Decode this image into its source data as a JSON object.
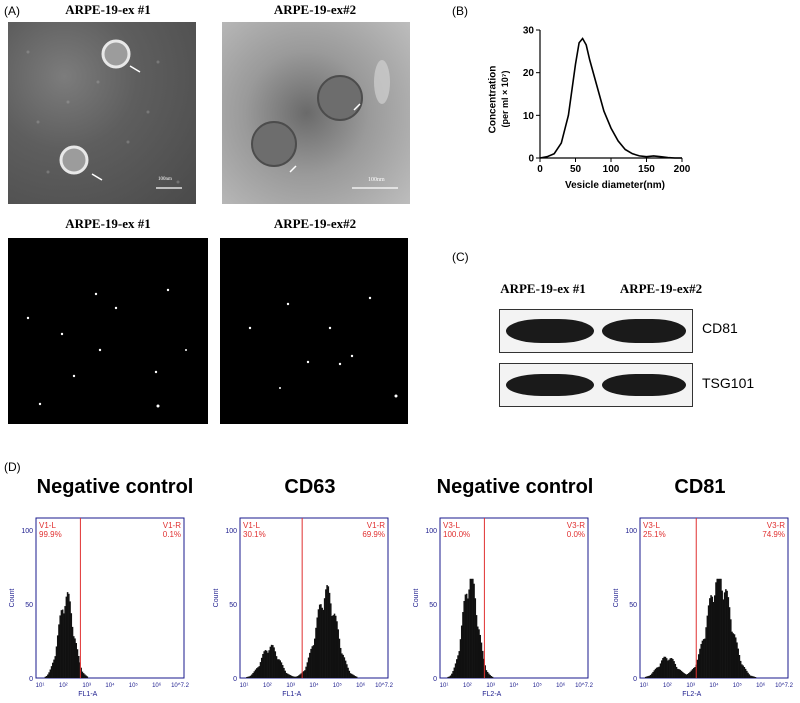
{
  "panels": {
    "A": {
      "label": "(A)",
      "tem_titles": [
        "ARPE-19-ex #1",
        "ARPE-19-ex#2"
      ],
      "scale_bar": "100nm",
      "nta_titles": [
        "ARPE-19-ex #1",
        "ARPE-19-ex#2"
      ]
    },
    "B": {
      "label": "(B)"
    },
    "C": {
      "label": "(C)",
      "lanes": [
        "ARPE-19-ex #1",
        "ARPE-19-ex#2"
      ],
      "markers": [
        "CD81",
        "TSG101"
      ]
    },
    "D": {
      "label": "(D)",
      "histograms": [
        {
          "title": "Negative control",
          "left_gate": "V1-L",
          "right_gate": "V1-R",
          "left_pct": "99.9%",
          "right_pct": "0.1%",
          "xlabel": "FL1-A",
          "ylabel": "Count"
        },
        {
          "title": "CD63",
          "left_gate": "V1-L",
          "right_gate": "V1-R",
          "left_pct": "30.1%",
          "right_pct": "69.9%",
          "xlabel": "FL1-A",
          "ylabel": "Count"
        },
        {
          "title": "Negative control",
          "left_gate": "V3-L",
          "right_gate": "V3-R",
          "left_pct": "100.0%",
          "right_pct": "0.0%",
          "xlabel": "FL2-A",
          "ylabel": "Count"
        },
        {
          "title": "CD81",
          "left_gate": "V3-L",
          "right_gate": "V3-R",
          "left_pct": "25.1%",
          "right_pct": "74.9%",
          "xlabel": "FL2-A",
          "ylabel": "Count"
        }
      ],
      "y_ticks": [
        "0",
        "50",
        "100"
      ],
      "x_ticks": [
        "10¹",
        "10²",
        "10³",
        "10⁴",
        "10⁵",
        "10⁶",
        "10^7.2"
      ]
    }
  },
  "chart_data": {
    "type": "line",
    "title": "",
    "xlabel": "Vesicle diameter(nm)",
    "ylabel_line1": "Concentration",
    "ylabel_line2": "(per ml × 10⁷)",
    "xlim": [
      0,
      200
    ],
    "ylim": [
      0,
      30
    ],
    "x_ticks": [
      0,
      50,
      100,
      150,
      200
    ],
    "y_ticks": [
      0,
      10,
      20,
      30
    ],
    "x": [
      0,
      10,
      20,
      30,
      40,
      50,
      55,
      60,
      65,
      70,
      80,
      90,
      100,
      110,
      120,
      130,
      140,
      150,
      160,
      170,
      180,
      190,
      200
    ],
    "y": [
      0,
      0.3,
      1,
      3.5,
      10,
      22,
      27,
      28,
      26.5,
      23,
      17,
      11,
      7,
      4,
      2,
      1,
      0.5,
      0.3,
      0.5,
      0.3,
      0.1,
      0,
      0
    ],
    "grid": false
  }
}
